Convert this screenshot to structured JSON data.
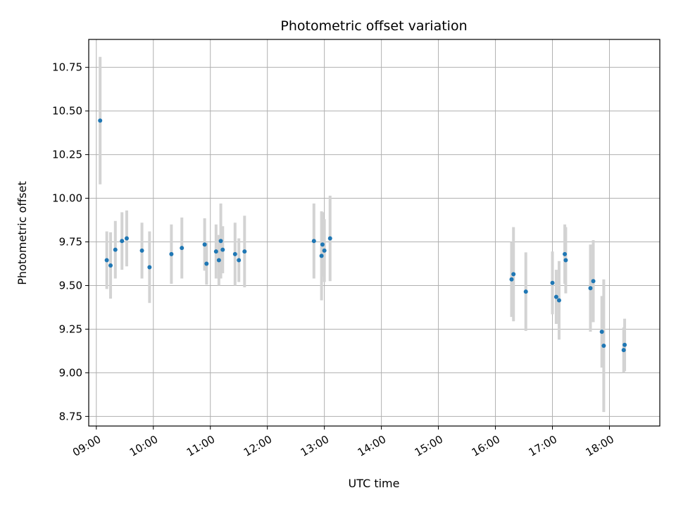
{
  "chart_data": {
    "type": "scatter",
    "title": "Photometric offset variation",
    "xlabel": "UTC time",
    "ylabel": "Photometric offset",
    "x_tick_labels": [
      "09:00",
      "10:00",
      "11:00",
      "12:00",
      "13:00",
      "14:00",
      "15:00",
      "16:00",
      "17:00",
      "18:00"
    ],
    "y_tick_labels": [
      "8.75",
      "9.00",
      "9.25",
      "9.50",
      "9.75",
      "10.00",
      "10.25",
      "10.50",
      "10.75"
    ],
    "xlim": [
      "08:52",
      "18:53"
    ],
    "ylim": [
      8.695,
      10.91
    ],
    "grid": true,
    "colors": {
      "point": "#1f77b4",
      "errorbar": "#d3d3d3",
      "grid": "#b0b0b0"
    },
    "points": [
      {
        "t": "09:04",
        "y": 10.445,
        "err": 0.365
      },
      {
        "t": "09:11",
        "y": 9.645,
        "err": 0.165
      },
      {
        "t": "09:15",
        "y": 9.615,
        "err": 0.19
      },
      {
        "t": "09:20",
        "y": 9.705,
        "err": 0.165
      },
      {
        "t": "09:27",
        "y": 9.755,
        "err": 0.165
      },
      {
        "t": "09:32",
        "y": 9.77,
        "err": 0.16
      },
      {
        "t": "09:48",
        "y": 9.7,
        "err": 0.16
      },
      {
        "t": "09:56",
        "y": 9.605,
        "err": 0.205
      },
      {
        "t": "10:19",
        "y": 9.68,
        "err": 0.17
      },
      {
        "t": "10:30",
        "y": 9.715,
        "err": 0.175
      },
      {
        "t": "10:54",
        "y": 9.735,
        "err": 0.15
      },
      {
        "t": "10:56",
        "y": 9.625,
        "err": 0.12
      },
      {
        "t": "11:06",
        "y": 9.695,
        "err": 0.155
      },
      {
        "t": "11:09",
        "y": 9.645,
        "err": 0.145
      },
      {
        "t": "11:11",
        "y": 9.755,
        "err": 0.215
      },
      {
        "t": "11:13",
        "y": 9.705,
        "err": 0.135
      },
      {
        "t": "11:26",
        "y": 9.68,
        "err": 0.18
      },
      {
        "t": "11:30",
        "y": 9.645,
        "err": 0.125
      },
      {
        "t": "11:36",
        "y": 9.695,
        "err": 0.205
      },
      {
        "t": "12:49",
        "y": 9.755,
        "err": 0.215
      },
      {
        "t": "12:57",
        "y": 9.67,
        "err": 0.255
      },
      {
        "t": "12:58",
        "y": 9.735,
        "err": 0.185
      },
      {
        "t": "13:00",
        "y": 9.7,
        "err": 0.18
      },
      {
        "t": "13:06",
        "y": 9.77,
        "err": 0.245
      },
      {
        "t": "16:17",
        "y": 9.535,
        "err": 0.215
      },
      {
        "t": "16:19",
        "y": 9.565,
        "err": 0.27
      },
      {
        "t": "16:32",
        "y": 9.465,
        "err": 0.225
      },
      {
        "t": "17:00",
        "y": 9.515,
        "err": 0.18
      },
      {
        "t": "17:04",
        "y": 9.435,
        "err": 0.155
      },
      {
        "t": "17:07",
        "y": 9.415,
        "err": 0.225
      },
      {
        "t": "17:13",
        "y": 9.68,
        "err": 0.17
      },
      {
        "t": "17:14",
        "y": 9.645,
        "err": 0.19
      },
      {
        "t": "17:40",
        "y": 9.485,
        "err": 0.25
      },
      {
        "t": "17:43",
        "y": 9.525,
        "err": 0.235
      },
      {
        "t": "17:52",
        "y": 9.235,
        "err": 0.205
      },
      {
        "t": "17:54",
        "y": 9.155,
        "err": 0.38
      },
      {
        "t": "18:15",
        "y": 9.13,
        "err": 0.13
      },
      {
        "t": "18:16",
        "y": 9.16,
        "err": 0.15
      }
    ]
  }
}
